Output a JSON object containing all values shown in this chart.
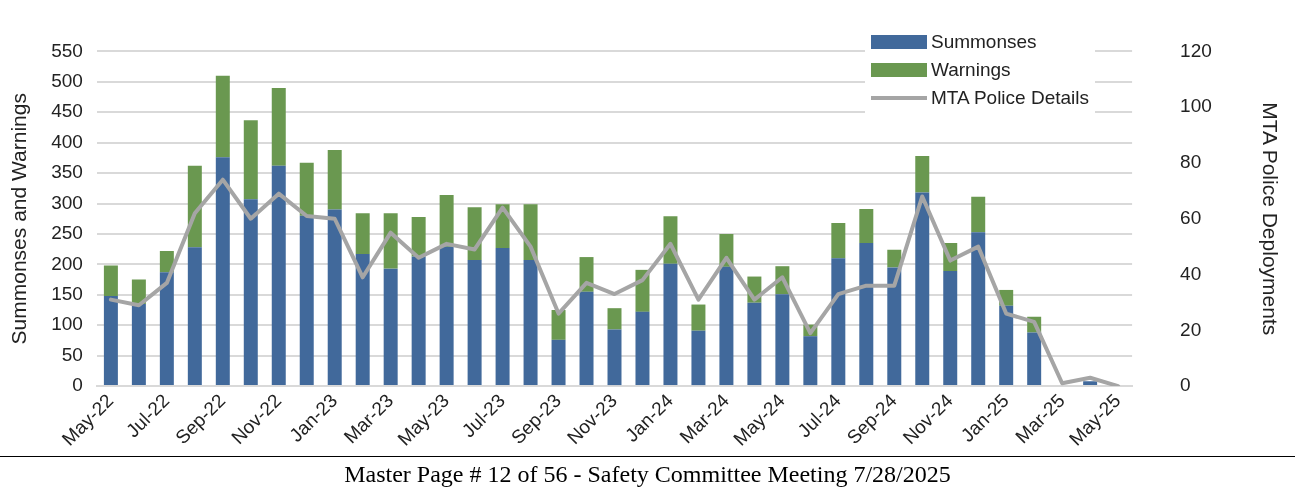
{
  "chart_data": {
    "type": "bar",
    "stacked": true,
    "ylabel": "Summonses and Warnings",
    "y2label": "MTA Police Deployments",
    "categories": [
      "May-22",
      null,
      "Jul-22",
      null,
      "Sep-22",
      null,
      "Nov-22",
      null,
      "Jan-23",
      null,
      "Mar-23",
      null,
      "May-23",
      null,
      "Jul-23",
      null,
      "Sep-23",
      null,
      "Nov-23",
      null,
      "Jan-24",
      null,
      "Mar-24",
      null,
      "May-24",
      null,
      "Jul-24",
      null,
      "Sep-24",
      null,
      "Nov-24",
      null,
      "Jan-25",
      null,
      "Mar-25",
      null,
      "May-25"
    ],
    "series": [
      {
        "name": "Summonses",
        "color": "#41699b",
        "values": [
          148,
          135,
          187,
          228,
          376,
          307,
          362,
          280,
          290,
          217,
          193,
          213,
          229,
          207,
          227,
          207,
          76,
          155,
          93,
          122,
          201,
          91,
          196,
          137,
          151,
          82,
          210,
          235,
          195,
          318,
          189,
          253,
          132,
          88,
          null,
          8,
          0
        ]
      },
      {
        "name": "Warnings",
        "color": "#6a9850",
        "values": [
          50,
          40,
          35,
          134,
          134,
          130,
          128,
          87,
          98,
          67,
          91,
          65,
          85,
          87,
          72,
          92,
          49,
          57,
          35,
          69,
          78,
          43,
          54,
          43,
          46,
          19,
          58,
          56,
          29,
          60,
          46,
          58,
          26,
          26,
          null,
          0,
          0
        ]
      },
      {
        "name": "MTA Police Details",
        "type": "line",
        "axis": "y2",
        "color": "#a5a5a5",
        "values": [
          31,
          29,
          37,
          62,
          74,
          60,
          69,
          61,
          60,
          39,
          55,
          46,
          51,
          49,
          64,
          50,
          26,
          37,
          33,
          38,
          51,
          31,
          46,
          31,
          39,
          19,
          33,
          36,
          36,
          68,
          45,
          50,
          26,
          23,
          1,
          3,
          0
        ]
      }
    ],
    "ylim": [
      0,
      550
    ],
    "yticks": [
      0,
      50,
      100,
      150,
      200,
      250,
      300,
      350,
      400,
      450,
      500,
      550
    ],
    "y2lim": [
      0,
      120
    ],
    "y2ticks": [
      0,
      20,
      40,
      60,
      80,
      100,
      120
    ],
    "grid": "y",
    "legend": "top right",
    "marker": "none",
    "line_style": "solid",
    "annotations": [
      "Master Page # 12 of 56 - Safety Committee Meeting 7/28/2025"
    ]
  }
}
